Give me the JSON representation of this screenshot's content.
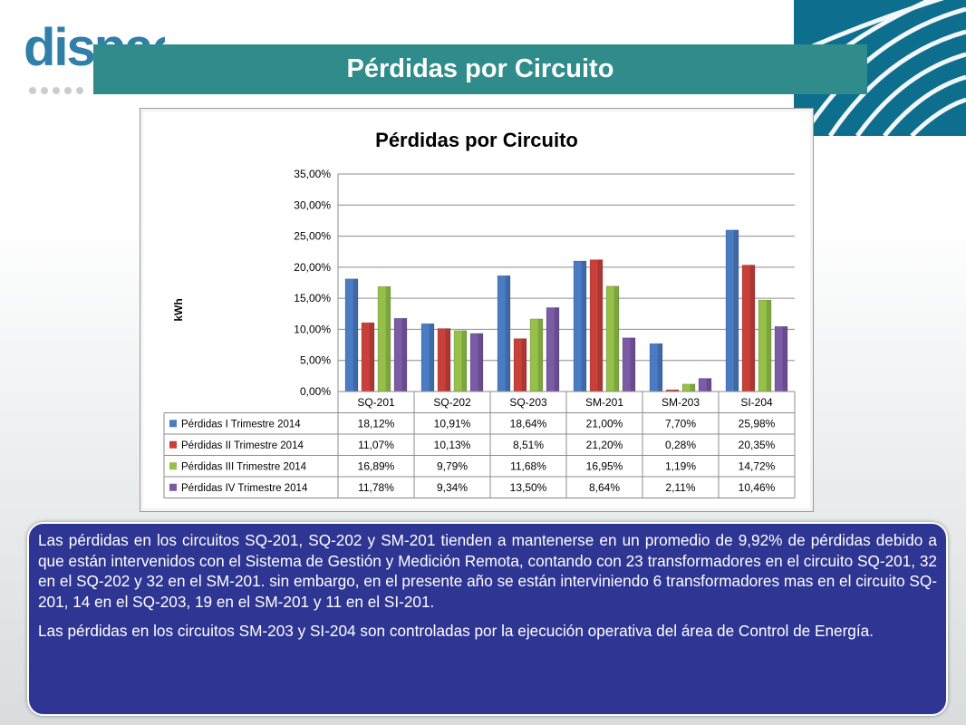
{
  "header": {
    "logo_text": "dispac",
    "title": "Pérdidas por Circuito"
  },
  "chart_data": {
    "type": "bar",
    "title": "Pérdidas por Circuito",
    "ylabel": "kWh",
    "xlabel": "",
    "ylim": [
      0,
      35
    ],
    "yticks": [
      "0,00%",
      "5,00%",
      "10,00%",
      "15,00%",
      "20,00%",
      "25,00%",
      "30,00%",
      "35,00%"
    ],
    "categories": [
      "SQ-201",
      "SQ-202",
      "SQ-203",
      "SM-201",
      "SM-203",
      "SI-204"
    ],
    "grid": true,
    "legend": "table-below",
    "series": [
      {
        "name": "Pérdidas I Trimestre 2014",
        "color": "#4a7cc4",
        "values": [
          18.12,
          10.91,
          18.64,
          21.0,
          7.7,
          25.98
        ],
        "labels": [
          "18,12%",
          "10,91%",
          "18,64%",
          "21,00%",
          "7,70%",
          "25,98%"
        ]
      },
      {
        "name": "Pérdidas II Trimestre 2014",
        "color": "#c9403b",
        "values": [
          11.07,
          10.13,
          8.51,
          21.2,
          0.28,
          20.35
        ],
        "labels": [
          "11,07%",
          "10,13%",
          "8,51%",
          "21,20%",
          "0,28%",
          "20,35%"
        ]
      },
      {
        "name": "Pérdidas III Trimestre 2014",
        "color": "#95c14a",
        "values": [
          16.89,
          9.79,
          11.68,
          16.95,
          1.19,
          14.72
        ],
        "labels": [
          "16,89%",
          "9,79%",
          "11,68%",
          "16,95%",
          "1,19%",
          "14,72%"
        ]
      },
      {
        "name": "Pérdidas IV Trimestre 2014",
        "color": "#7b5aa6",
        "values": [
          11.78,
          9.34,
          13.5,
          8.64,
          2.11,
          10.46
        ],
        "labels": [
          "11,78%",
          "9,34%",
          "13,50%",
          "8,64%",
          "2,11%",
          "10,46%"
        ]
      }
    ]
  },
  "note": {
    "paragraphs": [
      "Las pérdidas en los circuitos SQ-201, SQ-202 y SM-201 tienden a mantenerse en un promedio de 9,92% de pérdidas debido a que están intervenidos con el Sistema de Gestión y Medición Remota, contando con 23 transformadores en el circuito SQ-201, 32 en el SQ-202 y 32 en el SM-201. sin embargo, en el presente año se están interviniendo 6 transformadores mas en el circuito SQ-201, 14 en el SQ-203, 19 en el SM-201 y 11 en el SI-201.",
      "Las pérdidas en los circuitos SM-203 y SI-204 son controladas por la ejecución operativa del área de Control de Energía."
    ]
  }
}
